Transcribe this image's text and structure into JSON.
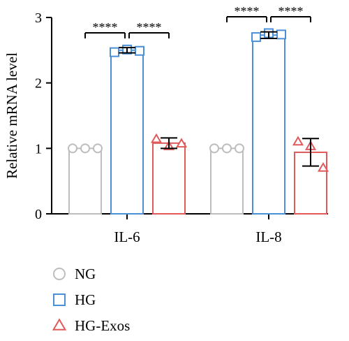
{
  "chart_data": {
    "type": "bar",
    "ylabel": "Relative mRNA level",
    "ylim": [
      0,
      3
    ],
    "yticks": [
      "0",
      "1",
      "2",
      "3"
    ],
    "categories": [
      "IL-6",
      "IL-8"
    ],
    "series": [
      {
        "name": "NG",
        "marker": "circle",
        "color": "#bdbdbd",
        "values": [
          1.0,
          1.0
        ],
        "errors": [
          0.0,
          0.0
        ],
        "points": [
          [
            1.0,
            1.0,
            1.0
          ],
          [
            1.0,
            1.0,
            1.0
          ]
        ]
      },
      {
        "name": "HG",
        "marker": "square",
        "color": "#4a90d9",
        "values": [
          2.5,
          2.73
        ],
        "errors": [
          0.04,
          0.05
        ],
        "points": [
          [
            2.47,
            2.51,
            2.49
          ],
          [
            2.7,
            2.76,
            2.74
          ]
        ]
      },
      {
        "name": "HG-Exos",
        "marker": "triangle",
        "color": "#e05a5a",
        "values": [
          1.08,
          0.94
        ],
        "errors": [
          0.08,
          0.21
        ],
        "points": [
          [
            1.14,
            1.03,
            1.07
          ],
          [
            1.1,
            1.03,
            0.7
          ]
        ]
      }
    ],
    "significance": [
      {
        "category": 0,
        "from": 0,
        "to": 1,
        "label": "****"
      },
      {
        "category": 0,
        "from": 1,
        "to": 2,
        "label": "****"
      },
      {
        "category": 1,
        "from": 0,
        "to": 1,
        "label": "****"
      },
      {
        "category": 1,
        "from": 1,
        "to": 2,
        "label": "****"
      }
    ],
    "legend_position": "bottom-left"
  }
}
